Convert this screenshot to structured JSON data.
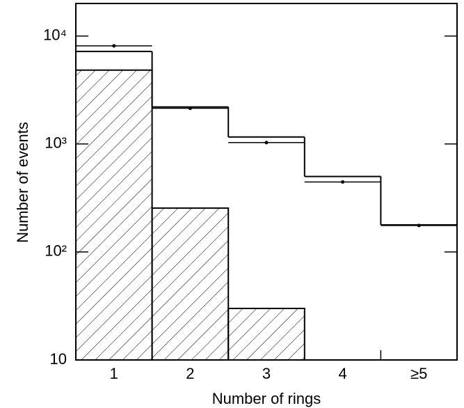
{
  "chart_data": {
    "type": "histogram",
    "x_label": "Number of rings",
    "y_label": "Number of events",
    "categories": [
      "1",
      "2",
      "3",
      "4",
      "≥5"
    ],
    "series": [
      {
        "style": "hatched",
        "color": "#000000",
        "values": [
          4830,
          255,
          30,
          null,
          null
        ]
      },
      {
        "style": "step",
        "color": "#000000",
        "values": [
          7200,
          2200,
          1160,
          500,
          178
        ]
      },
      {
        "style": "points",
        "color": "#000000",
        "values": [
          8100,
          2140,
          1030,
          445,
          176
        ]
      }
    ],
    "log_y": true,
    "ylim": [
      10,
      20000
    ],
    "yticks": [
      10,
      {
        "value": 100,
        "label": "10²"
      },
      {
        "value": 1000,
        "label": "10³"
      },
      {
        "value": 10000,
        "label": "10⁴"
      }
    ]
  }
}
